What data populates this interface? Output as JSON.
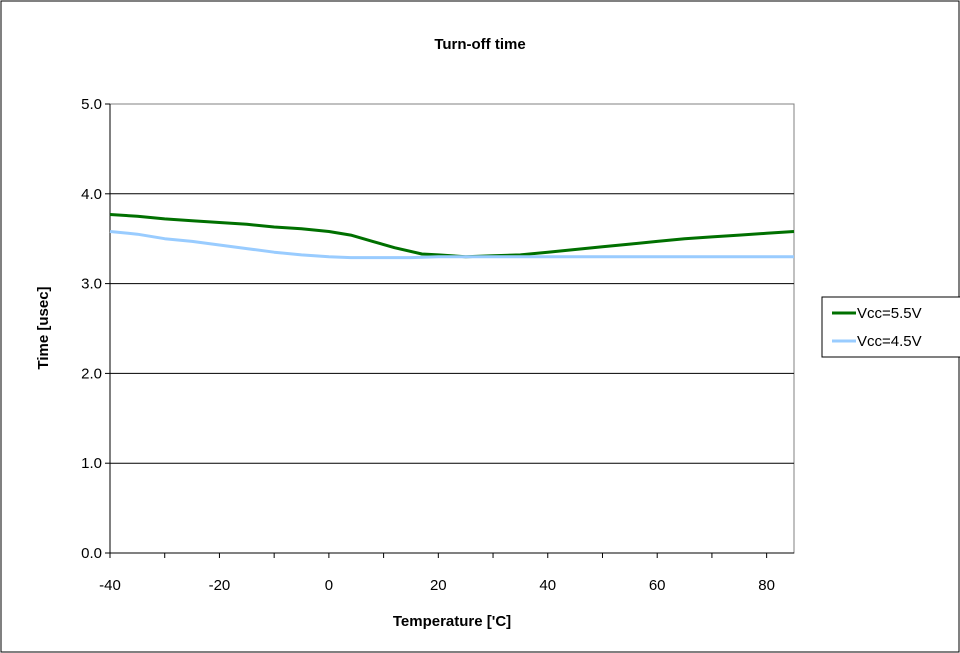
{
  "chart_data": {
    "type": "line",
    "title": "Turn-off time",
    "xlabel": "Temperature ['C]",
    "ylabel": "Time [usec]",
    "xlim": [
      -40,
      85
    ],
    "ylim": [
      0,
      5
    ],
    "xticks": [
      -40,
      -20,
      0,
      20,
      40,
      60,
      80
    ],
    "xtick_labels": [
      "-40",
      "-20",
      "0",
      "20",
      "40",
      "60",
      "80"
    ],
    "yticks": [
      0,
      1,
      2,
      3,
      4,
      5
    ],
    "ytick_labels": [
      "0.0",
      "1.0",
      "2.0",
      "3.0",
      "4.0",
      "5.0"
    ],
    "grid": "horizontal",
    "legend_position": "right",
    "series": [
      {
        "name": "Vcc=5.5V",
        "color": "#007000",
        "x": [
          -40,
          -35,
          -30,
          -25,
          -20,
          -15,
          -10,
          -5,
          0,
          4,
          8,
          12,
          17,
          20,
          25,
          30,
          35,
          40,
          45,
          50,
          55,
          60,
          65,
          70,
          75,
          80,
          85
        ],
        "y": [
          3.77,
          3.75,
          3.72,
          3.7,
          3.68,
          3.66,
          3.63,
          3.61,
          3.58,
          3.54,
          3.47,
          3.4,
          3.33,
          3.32,
          3.3,
          3.31,
          3.32,
          3.35,
          3.38,
          3.41,
          3.44,
          3.47,
          3.5,
          3.52,
          3.54,
          3.56,
          3.58
        ]
      },
      {
        "name": "Vcc=4.5V",
        "color": "#99ccff",
        "x": [
          -40,
          -35,
          -30,
          -25,
          -20,
          -15,
          -10,
          -5,
          0,
          4,
          10,
          15,
          20,
          25,
          30,
          40,
          50,
          60,
          70,
          80,
          85
        ],
        "y": [
          3.58,
          3.55,
          3.5,
          3.47,
          3.43,
          3.39,
          3.35,
          3.32,
          3.3,
          3.29,
          3.29,
          3.29,
          3.3,
          3.3,
          3.3,
          3.3,
          3.3,
          3.3,
          3.3,
          3.3,
          3.3
        ]
      }
    ]
  }
}
